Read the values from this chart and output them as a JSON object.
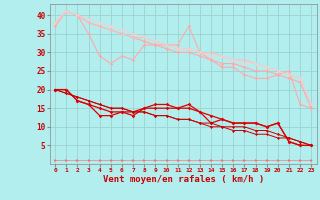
{
  "background_color": "#b2eeee",
  "grid_color": "#99cccc",
  "xlabel": "Vent moyen/en rafales ( km/h )",
  "xlabel_color": "#cc0000",
  "tick_color": "#cc0000",
  "xlim": [
    -0.5,
    23.5
  ],
  "ylim": [
    0,
    43
  ],
  "yticks": [
    5,
    10,
    15,
    20,
    25,
    30,
    35,
    40
  ],
  "xticks": [
    0,
    1,
    2,
    3,
    4,
    5,
    6,
    7,
    8,
    9,
    10,
    11,
    12,
    13,
    14,
    15,
    16,
    17,
    18,
    19,
    20,
    21,
    22,
    23
  ],
  "lines_light": [
    {
      "x": [
        0,
        1,
        2,
        3,
        4,
        5,
        6,
        7,
        8,
        9,
        10,
        11,
        12,
        13,
        14,
        15,
        16,
        17,
        18,
        19,
        20,
        21,
        22,
        23
      ],
      "y": [
        37,
        41,
        40,
        35,
        29,
        27,
        29,
        28,
        32,
        32,
        32,
        32,
        37,
        30,
        28,
        26,
        26,
        24,
        23,
        23,
        24,
        25,
        16,
        15
      ],
      "color": "#ffaaaa",
      "marker": "D",
      "markersize": 1.8,
      "linewidth": 0.8
    },
    {
      "x": [
        0,
        1,
        2,
        3,
        4,
        5,
        6,
        7,
        8,
        9,
        10,
        11,
        12,
        13,
        14,
        15,
        16,
        17,
        18,
        19,
        20,
        21,
        22,
        23
      ],
      "y": [
        38,
        41,
        40,
        38,
        37,
        36,
        35,
        34,
        33,
        32,
        31,
        30,
        30,
        29,
        28,
        27,
        27,
        26,
        25,
        25,
        24,
        23,
        22,
        15
      ],
      "color": "#ffaaaa",
      "marker": "D",
      "markersize": 1.8,
      "linewidth": 0.8
    },
    {
      "x": [
        0,
        1,
        2,
        3,
        4,
        5,
        6,
        7,
        8,
        9,
        10,
        11,
        12,
        13,
        14,
        15,
        16,
        17,
        18,
        19,
        20,
        21,
        22,
        23
      ],
      "y": [
        38,
        41,
        40,
        38,
        37,
        36,
        35,
        34,
        34,
        33,
        32,
        31,
        31,
        30,
        30,
        29,
        28,
        28,
        27,
        26,
        25,
        24,
        23,
        16
      ],
      "color": "#ffbbbb",
      "marker": "D",
      "markersize": 1.5,
      "linewidth": 0.7
    },
    {
      "x": [
        0,
        1,
        2,
        3,
        4,
        5,
        6,
        7,
        8,
        9,
        10,
        11,
        12,
        13,
        14,
        15,
        16,
        17,
        18,
        19,
        20,
        21,
        22,
        23
      ],
      "y": [
        38,
        41,
        40,
        39,
        38,
        37,
        36,
        35,
        34,
        33,
        32,
        31,
        31,
        30,
        29,
        29,
        28,
        27,
        27,
        26,
        25,
        24,
        23,
        16
      ],
      "color": "#ffcccc",
      "marker": "D",
      "markersize": 1.5,
      "linewidth": 0.7
    }
  ],
  "lines_dark": [
    {
      "x": [
        0,
        1,
        2,
        3,
        4,
        5,
        6,
        7,
        8,
        9,
        10,
        11,
        12,
        13,
        14,
        15,
        16,
        17,
        18,
        19,
        20,
        21,
        22,
        23
      ],
      "y": [
        20,
        20,
        17,
        16,
        13,
        13,
        14,
        13,
        15,
        16,
        16,
        15,
        16,
        14,
        11,
        12,
        11,
        11,
        11,
        10,
        11,
        6,
        5,
        5
      ],
      "color": "#dd0000",
      "marker": "D",
      "markersize": 1.8,
      "linewidth": 0.9
    },
    {
      "x": [
        0,
        1,
        2,
        3,
        4,
        5,
        6,
        7,
        8,
        9,
        10,
        11,
        12,
        13,
        14,
        15,
        16,
        17,
        18,
        19,
        20,
        21,
        22,
        23
      ],
      "y": [
        20,
        20,
        17,
        16,
        15,
        14,
        14,
        14,
        15,
        15,
        15,
        15,
        15,
        14,
        13,
        12,
        11,
        11,
        11,
        10,
        11,
        6,
        5,
        5
      ],
      "color": "#dd0000",
      "marker": "D",
      "markersize": 1.8,
      "linewidth": 0.9
    },
    {
      "x": [
        0,
        1,
        2,
        3,
        4,
        5,
        6,
        7,
        8,
        9,
        10,
        11,
        12,
        13,
        14,
        15,
        16,
        17,
        18,
        19,
        20,
        21,
        22,
        23
      ],
      "y": [
        20,
        19,
        18,
        17,
        16,
        15,
        15,
        14,
        14,
        13,
        13,
        12,
        12,
        11,
        11,
        10,
        10,
        10,
        9,
        9,
        8,
        7,
        6,
        5
      ],
      "color": "#cc0000",
      "marker": "D",
      "markersize": 1.5,
      "linewidth": 0.7
    },
    {
      "x": [
        0,
        1,
        2,
        3,
        4,
        5,
        6,
        7,
        8,
        9,
        10,
        11,
        12,
        13,
        14,
        15,
        16,
        17,
        18,
        19,
        20,
        21,
        22,
        23
      ],
      "y": [
        20,
        19,
        18,
        17,
        16,
        15,
        15,
        14,
        14,
        13,
        13,
        12,
        12,
        11,
        10,
        10,
        9,
        9,
        8,
        8,
        7,
        7,
        6,
        5
      ],
      "color": "#cc0000",
      "marker": "D",
      "markersize": 1.5,
      "linewidth": 0.7
    }
  ],
  "line_bottom": {
    "x": [
      0,
      1,
      2,
      3,
      4,
      5,
      6,
      7,
      8,
      9,
      10,
      11,
      12,
      13,
      14,
      15,
      16,
      17,
      18,
      19,
      20,
      21,
      22,
      23
    ],
    "y": [
      1,
      1,
      1,
      1,
      1,
      1,
      1,
      1,
      1,
      1,
      1,
      1,
      1,
      1,
      1,
      1,
      1,
      1,
      1,
      1,
      1,
      1,
      1,
      1
    ],
    "color": "#ff6666",
    "marker": ">",
    "markersize": 2.0,
    "linewidth": 0.4
  },
  "figsize": [
    3.2,
    2.0
  ],
  "dpi": 100
}
